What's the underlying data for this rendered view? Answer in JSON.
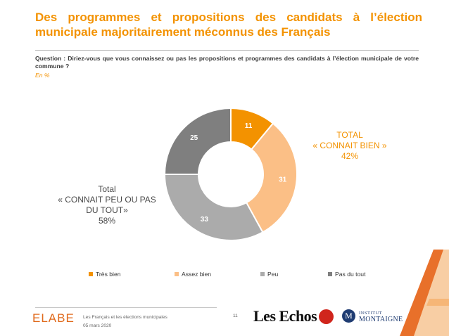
{
  "header": {
    "title": "Des programmes et propositions des candidats à l’élection municipale majoritairement méconnus des Français",
    "question": "Question : Diriez-vous que vous connaissez ou pas les propositions et programmes des candidats à l’élection municipale de votre commune ?",
    "unit": "En %"
  },
  "chart_data": {
    "type": "pie",
    "donut": true,
    "title": "",
    "categories": [
      "Très bien",
      "Assez bien",
      "Peu",
      "Pas du tout"
    ],
    "values": [
      11,
      31,
      33,
      25
    ],
    "colors": [
      "#f39200",
      "#fbbf86",
      "#ababab",
      "#7f7f7f"
    ],
    "legend_position": "bottom"
  },
  "callouts": {
    "right": {
      "line1": "TOTAL",
      "line2": "« CONNAIT BIEN »",
      "value": "42%"
    },
    "left": {
      "line1": "Total",
      "line2": "« CONNAIT PEU OU PAS",
      "line3": "DU TOUT»",
      "value": "58%"
    }
  },
  "footer": {
    "brand": "ELABE",
    "line1": "Les Français et les élections municipales",
    "line2": "05 mars 2020",
    "page_number": "11",
    "partner1": "Les Echos",
    "partner3_line1": "INSTITUT",
    "partner3_line2": "MONTAIGNE"
  }
}
